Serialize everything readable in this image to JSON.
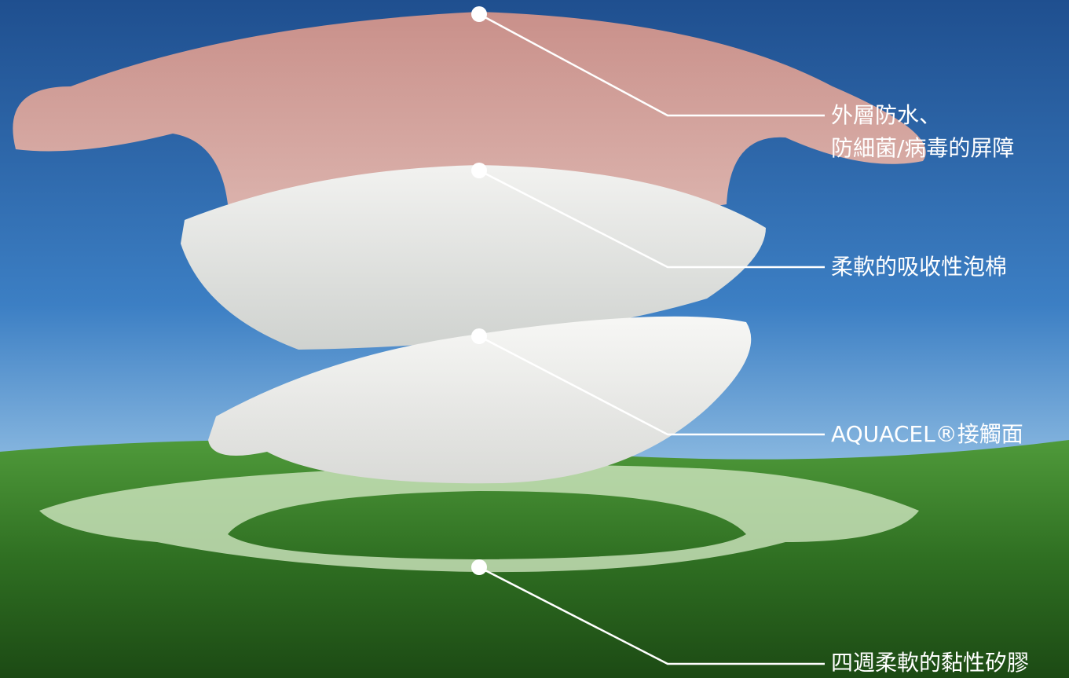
{
  "labels": [
    {
      "lines": [
        "外層防水、",
        "防細菌/病毒的屏障"
      ]
    },
    {
      "lines": [
        "柔軟的吸收性泡棉"
      ]
    },
    {
      "lines": [
        "AQUACEL®接觸面"
      ]
    },
    {
      "lines": [
        "四週柔軟的黏性矽膠"
      ]
    }
  ]
}
